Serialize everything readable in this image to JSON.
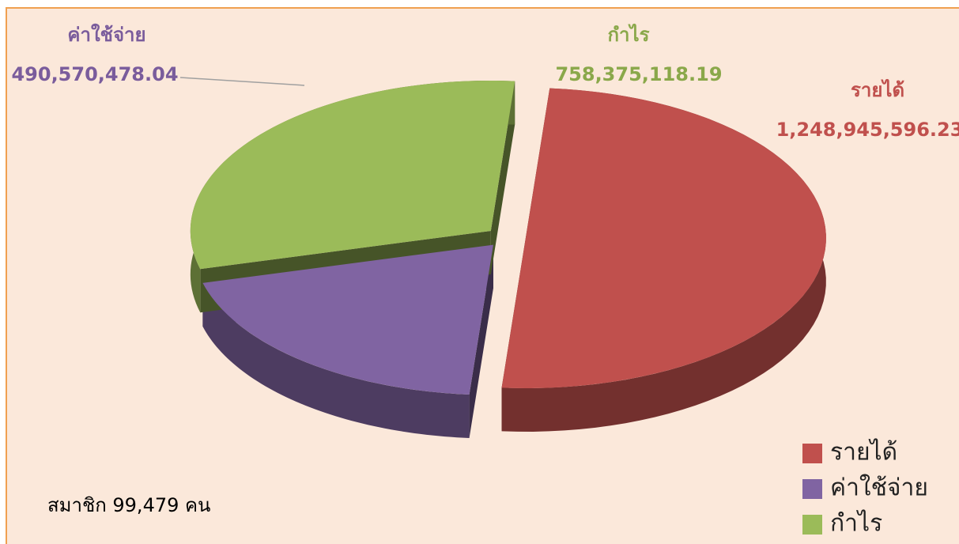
{
  "chart_data": {
    "type": "pie",
    "categories": [
      "รายได้",
      "ค่าใช้จ่าย",
      "กำไร"
    ],
    "values": [
      1248945596.23,
      490570478.04,
      758375118.19
    ],
    "value_labels": [
      "1,248,945,596.23",
      "490,570,478.04",
      "758,375,118.19"
    ],
    "colors": [
      "#c0504d",
      "#8064a2",
      "#9bbb59"
    ],
    "legend": "bottom-right",
    "annotation": "สมาชิก 99,479 คน"
  }
}
